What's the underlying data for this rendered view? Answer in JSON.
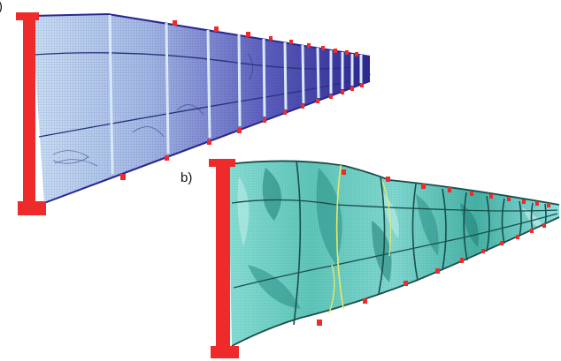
{
  "figure": {
    "panel_a": {
      "label_visible": ")",
      "colors": {
        "web_light": "#bcd4ee",
        "web_dark": "#2b2690",
        "stiffener": "#cfe3f5",
        "support_red": "#ee2a2a",
        "mesh_line": "#2a2f7a"
      }
    },
    "panel_b": {
      "label": "b)",
      "colors": {
        "web_cyan": "#7fd6cf",
        "web_teal": "#3aa89a",
        "web_dark_teal": "#1f7f77",
        "support_red": "#ee2a2a",
        "yellow_stress": "#e8e86a"
      }
    }
  }
}
